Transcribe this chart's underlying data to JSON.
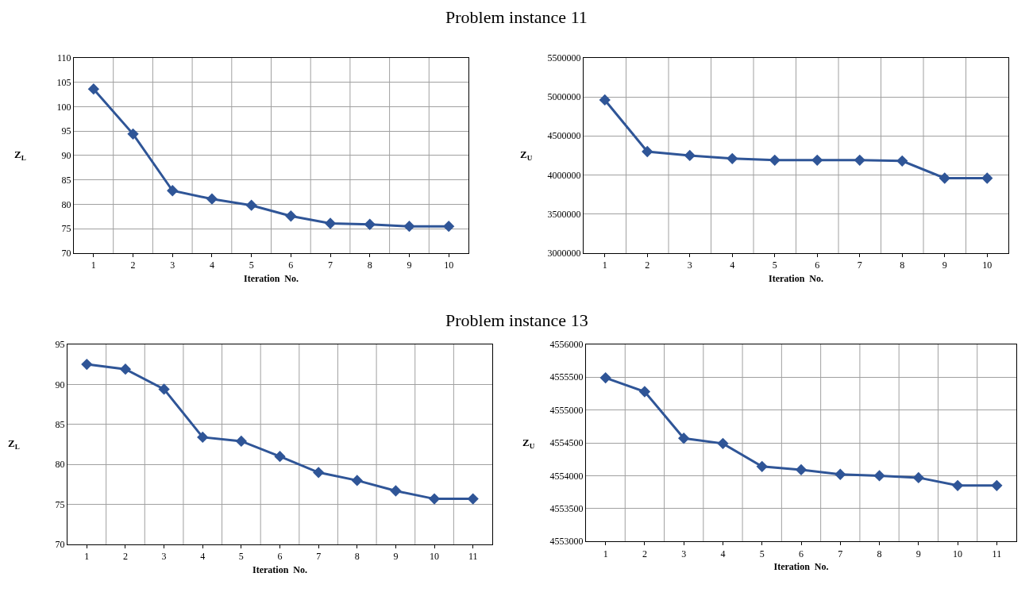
{
  "chart_data": [
    {
      "type": "line",
      "title": "Problem instance 11",
      "xlabel": "Iteration  No.",
      "ylabel": "Z$_{L}$",
      "categories": [
        "1",
        "2",
        "3",
        "4",
        "5",
        "6",
        "7",
        "8",
        "9",
        "10"
      ],
      "series": [
        {
          "color": "#2f5597",
          "values": [
            103.6,
            94.4,
            82.8,
            81.1,
            79.8,
            77.6,
            76.1,
            75.9,
            75.5,
            75.5
          ]
        }
      ],
      "ylim": [
        70,
        110
      ],
      "yticks": [
        70,
        75,
        80,
        85,
        90,
        95,
        100,
        105,
        110
      ],
      "grid": true,
      "marker": "diamond",
      "line_style": "solid"
    },
    {
      "type": "line",
      "xlabel": "Iteration  No.",
      "ylabel": "Z$_{U}$",
      "categories": [
        "1",
        "2",
        "3",
        "4",
        "5",
        "6",
        "7",
        "8",
        "9",
        "10"
      ],
      "series": [
        {
          "color": "#2f5597",
          "values": [
            4960000,
            4300000,
            4250000,
            4210000,
            4190000,
            4190000,
            4190000,
            4180000,
            3960000,
            3960000
          ]
        }
      ],
      "ylim": [
        3000000,
        5500000
      ],
      "yticks": [
        3000000,
        3500000,
        4000000,
        4500000,
        5000000,
        5500000
      ],
      "grid": true,
      "marker": "diamond",
      "line_style": "solid"
    },
    {
      "type": "line",
      "title": "Problem instance 13",
      "xlabel": "Iteration  No.",
      "ylabel": "Z$_{L}$",
      "categories": [
        "1",
        "2",
        "3",
        "4",
        "5",
        "6",
        "7",
        "8",
        "9",
        "10",
        "11"
      ],
      "series": [
        {
          "color": "#2f5597",
          "values": [
            92.5,
            91.9,
            89.4,
            83.4,
            82.9,
            81.0,
            79.0,
            78.0,
            76.7,
            75.7,
            75.7
          ]
        }
      ],
      "ylim": [
        70,
        95
      ],
      "yticks": [
        70,
        75,
        80,
        85,
        90,
        95
      ],
      "grid": true,
      "marker": "diamond",
      "line_style": "solid"
    },
    {
      "type": "line",
      "xlabel": "Iteration  No.",
      "ylabel": "Z$_{U}$",
      "categories": [
        "1",
        "2",
        "3",
        "4",
        "5",
        "6",
        "7",
        "8",
        "9",
        "10",
        "11"
      ],
      "series": [
        {
          "color": "#2f5597",
          "values": [
            4555490,
            4555280,
            4554570,
            4554490,
            4554140,
            4554090,
            4554020,
            4554000,
            4553970,
            4553850,
            4553850
          ]
        }
      ],
      "ylim": [
        4553000,
        4556000
      ],
      "yticks": [
        4553000,
        4553500,
        4554000,
        4554500,
        4555000,
        4555500,
        4556000
      ],
      "grid": true,
      "marker": "diamond",
      "line_style": "solid"
    }
  ]
}
